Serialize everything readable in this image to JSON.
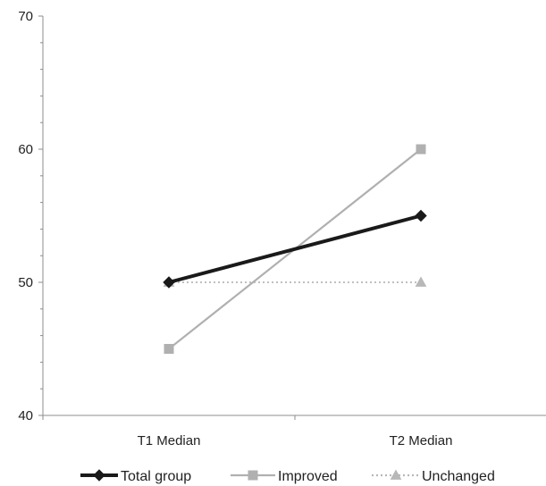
{
  "chart_data": {
    "type": "line",
    "categories": [
      "T1 Median",
      "T2 Median"
    ],
    "ylim": [
      40,
      70
    ],
    "y_ticks": [
      40,
      50,
      60,
      70
    ],
    "y_tick_labels": [
      "40",
      "50",
      "60",
      "70"
    ],
    "grid": false,
    "legend_position": "bottom",
    "series": [
      {
        "name": "Total group",
        "values": [
          50,
          55
        ],
        "color": "#1a1a1a",
        "marker": "diamond",
        "line_style": "solid"
      },
      {
        "name": "Improved",
        "values": [
          45,
          60
        ],
        "color": "#b0b0b0",
        "marker": "square",
        "line_style": "solid"
      },
      {
        "name": "Unchanged",
        "values": [
          50,
          50
        ],
        "color": "#b8b8b8",
        "marker": "triangle",
        "line_style": "dotted"
      }
    ]
  }
}
